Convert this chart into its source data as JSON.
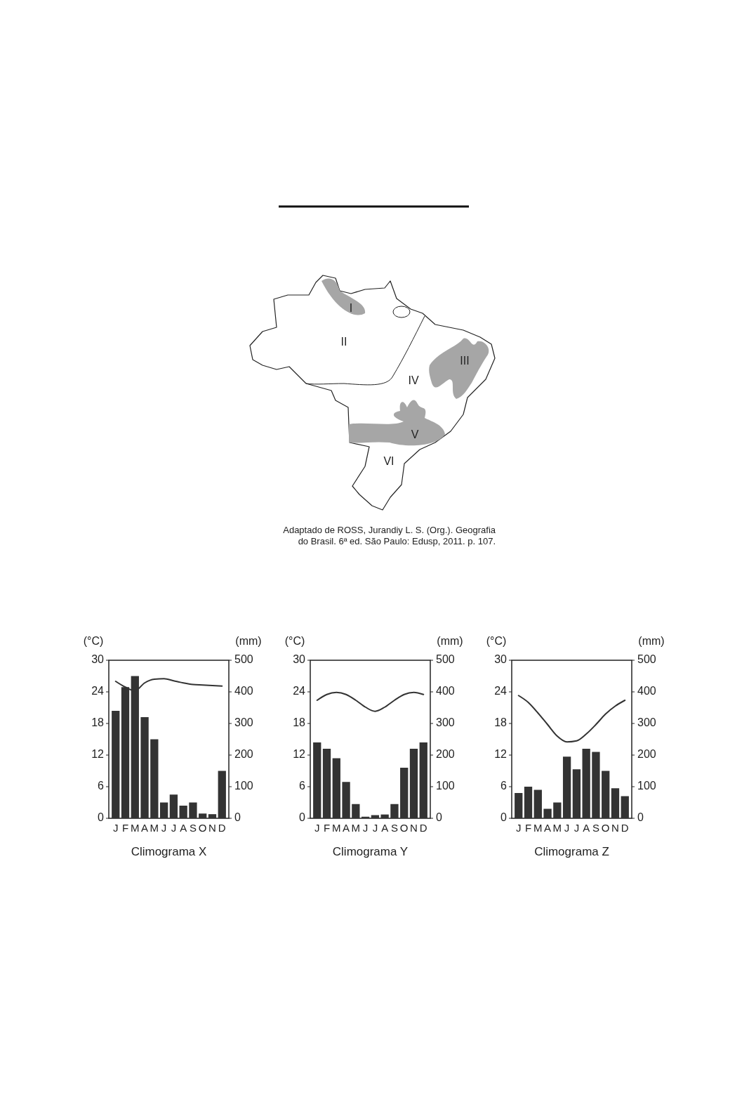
{
  "chart_data": [
    {
      "type": "other",
      "annotations": [
        "I",
        "II",
        "III",
        "IV",
        "V",
        "VI",
        "Adaptado de ROSS, Jurandiy L. S. (Org.). Geografia do Brasil. 6ª ed. São Paulo: Edusp, 2011. p. 107."
      ]
    },
    {
      "type": "bar",
      "title": "Climograma X",
      "ylabel": "(°C)",
      "y2label": "(mm)",
      "categories": [
        "J",
        "F",
        "M",
        "A",
        "M",
        "J",
        "J",
        "A",
        "S",
        "O",
        "N",
        "D"
      ],
      "ylim": [
        0,
        30
      ],
      "yticks": [
        0,
        6,
        12,
        18,
        24,
        30
      ],
      "y2lim": [
        0,
        500
      ],
      "y2ticks": [
        0,
        100,
        200,
        300,
        400,
        500
      ],
      "series": [
        {
          "type": "bar",
          "axis": "y2",
          "color": "#333333",
          "values": [
            340,
            415,
            450,
            320,
            250,
            50,
            75,
            40,
            50,
            15,
            13,
            150
          ]
        },
        {
          "type": "line",
          "axis": "y",
          "color": "#333333",
          "values": [
            26.0,
            24.9,
            24.2,
            25.7,
            26.4,
            26.5,
            26.1,
            25.7,
            25.4,
            25.3,
            25.2,
            25.1
          ]
        }
      ]
    },
    {
      "type": "bar",
      "title": "Climograma Y",
      "ylabel": "(°C)",
      "y2label": "(mm)",
      "categories": [
        "J",
        "F",
        "M",
        "A",
        "M",
        "J",
        "J",
        "A",
        "S",
        "O",
        "N",
        "D"
      ],
      "ylim": [
        0,
        30
      ],
      "yticks": [
        0,
        6,
        12,
        18,
        24,
        30
      ],
      "y2lim": [
        0,
        500
      ],
      "y2ticks": [
        0,
        100,
        200,
        300,
        400,
        500
      ],
      "series": [
        {
          "type": "bar",
          "axis": "y2",
          "color": "#333333",
          "values": [
            240,
            220,
            190,
            115,
            45,
            5,
            10,
            12,
            45,
            160,
            220,
            240
          ]
        },
        {
          "type": "line",
          "axis": "y",
          "color": "#333333",
          "values": [
            22.4,
            23.5,
            23.9,
            23.5,
            22.4,
            21.1,
            20.3,
            21.1,
            22.4,
            23.5,
            23.9,
            23.5
          ]
        }
      ]
    },
    {
      "type": "bar",
      "title": "Climograma Z",
      "ylabel": "(°C)",
      "y2label": "(mm)",
      "categories": [
        "J",
        "F",
        "M",
        "A",
        "M",
        "J",
        "J",
        "A",
        "S",
        "O",
        "N",
        "D"
      ],
      "ylim": [
        0,
        30
      ],
      "yticks": [
        0,
        6,
        12,
        18,
        24,
        30
      ],
      "y2lim": [
        0,
        500
      ],
      "y2ticks": [
        0,
        100,
        200,
        300,
        400,
        500
      ],
      "series": [
        {
          "type": "bar",
          "axis": "y2",
          "color": "#333333",
          "values": [
            80,
            100,
            90,
            30,
            50,
            195,
            155,
            220,
            210,
            150,
            95,
            70
          ]
        },
        {
          "type": "line",
          "axis": "y",
          "color": "#333333",
          "values": [
            23.3,
            22.0,
            20.0,
            17.8,
            15.6,
            14.5,
            14.7,
            16.0,
            17.8,
            19.8,
            21.3,
            22.4
          ]
        }
      ]
    }
  ]
}
